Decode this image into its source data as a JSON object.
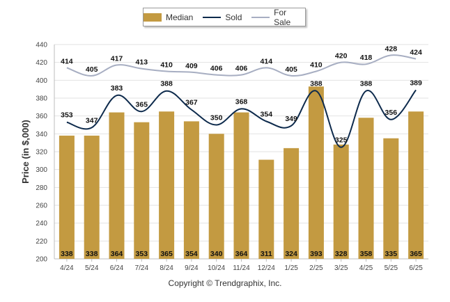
{
  "legend": {
    "median_label": "Median",
    "sold_label": "Sold",
    "sale_label": "For Sale"
  },
  "footer": {
    "copyright": "Copyright © Trendgraphix, Inc."
  },
  "colors": {
    "median": "#c39a41",
    "sold": "#0d2a4c",
    "for_sale": "#a7aec2"
  },
  "chart_data": {
    "type": "bar",
    "ylabel": "Price (in $,000)",
    "ylim": [
      200,
      440
    ],
    "yticks": [
      200,
      220,
      240,
      260,
      280,
      300,
      320,
      340,
      360,
      380,
      400,
      420,
      440
    ],
    "grid": true,
    "legend_position": "top-center",
    "categories": [
      "4/24",
      "5/24",
      "6/24",
      "7/24",
      "8/24",
      "9/24",
      "10/24",
      "11/24",
      "12/24",
      "1/25",
      "2/25",
      "3/25",
      "4/25",
      "5/25",
      "6/25"
    ],
    "series": [
      {
        "name": "Median",
        "type": "bar",
        "values": [
          338,
          338,
          364,
          353,
          365,
          354,
          340,
          364,
          311,
          324,
          393,
          328,
          358,
          335,
          365
        ]
      },
      {
        "name": "Sold",
        "type": "line",
        "values": [
          353,
          347,
          383,
          365,
          388,
          367,
          350,
          368,
          354,
          349,
          388,
          325,
          388,
          356,
          389
        ]
      },
      {
        "name": "For Sale",
        "type": "line",
        "values": [
          414,
          405,
          417,
          413,
          410,
          409,
          406,
          406,
          414,
          405,
          410,
          420,
          418,
          428,
          424
        ]
      }
    ]
  }
}
